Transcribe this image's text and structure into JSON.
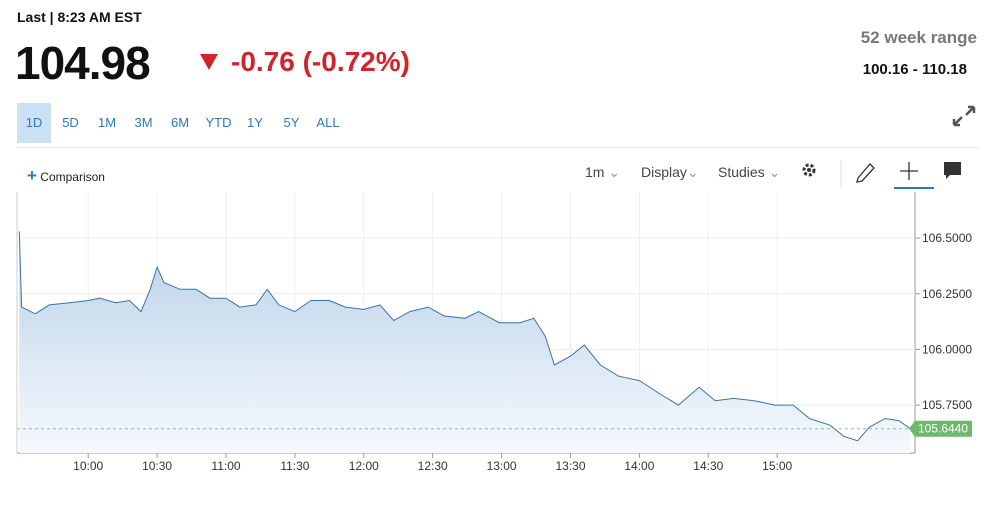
{
  "header": {
    "last_label": "Last | 8:23 AM EST",
    "price": "104.98",
    "change": "-0.76 (-0.72%)",
    "range_title": "52 week range",
    "range": "100.16 - 110.18"
  },
  "tabs": [
    "1D",
    "5D",
    "1M",
    "3M",
    "6M",
    "YTD",
    "1Y",
    "5Y",
    "ALL"
  ],
  "selected_tab": "1D",
  "toolbar": {
    "comparison": "Comparison",
    "interval": "1m",
    "display": "Display",
    "studies": "Studies"
  },
  "chart_data": {
    "type": "area",
    "color": "#3b74a8",
    "x": [
      570,
      571,
      577,
      583,
      592,
      600,
      605,
      612,
      618,
      623,
      627,
      630,
      633,
      640,
      647,
      653,
      660,
      666,
      673,
      678,
      683,
      690,
      697,
      705,
      712,
      720,
      727,
      733,
      740,
      748,
      755,
      764,
      770,
      779,
      788,
      794,
      799,
      803,
      810,
      816,
      823,
      831,
      840,
      849,
      857,
      866,
      873,
      881,
      890,
      899,
      907,
      914,
      923,
      929,
      935,
      940,
      947,
      953,
      958
    ],
    "values": [
      106.53,
      106.19,
      106.16,
      106.2,
      106.21,
      106.22,
      106.23,
      106.21,
      106.22,
      106.17,
      106.27,
      106.37,
      106.3,
      106.27,
      106.27,
      106.23,
      106.23,
      106.19,
      106.2,
      106.27,
      106.2,
      106.17,
      106.22,
      106.22,
      106.19,
      106.18,
      106.2,
      106.13,
      106.17,
      106.19,
      106.15,
      106.14,
      106.17,
      106.12,
      106.12,
      106.14,
      106.06,
      105.93,
      105.97,
      106.02,
      105.93,
      105.88,
      105.86,
      105.8,
      105.75,
      105.83,
      105.77,
      105.78,
      105.77,
      105.75,
      105.75,
      105.69,
      105.66,
      105.61,
      105.59,
      105.65,
      105.69,
      105.68,
      105.644
    ],
    "last_label": "105.6440",
    "xlim": [
      569,
      960
    ],
    "xticks": [
      {
        "value": 600,
        "label": "10:00"
      },
      {
        "value": 630,
        "label": "10:30"
      },
      {
        "value": 660,
        "label": "11:00"
      },
      {
        "value": 690,
        "label": "11:30"
      },
      {
        "value": 720,
        "label": "12:00"
      },
      {
        "value": 750,
        "label": "12:30"
      },
      {
        "value": 780,
        "label": "13:00"
      },
      {
        "value": 810,
        "label": "13:30"
      },
      {
        "value": 840,
        "label": "14:00"
      },
      {
        "value": 870,
        "label": "14:30"
      },
      {
        "value": 900,
        "label": "15:00"
      }
    ],
    "ylim": [
      105.535,
      106.707
    ],
    "yticks": [
      {
        "value": 105.75,
        "label": "105.7500"
      },
      {
        "value": 106,
        "label": "106.0000"
      },
      {
        "value": 106.25,
        "label": "106.2500"
      },
      {
        "value": 106.5,
        "label": "106.5000"
      }
    ],
    "grid": true
  }
}
